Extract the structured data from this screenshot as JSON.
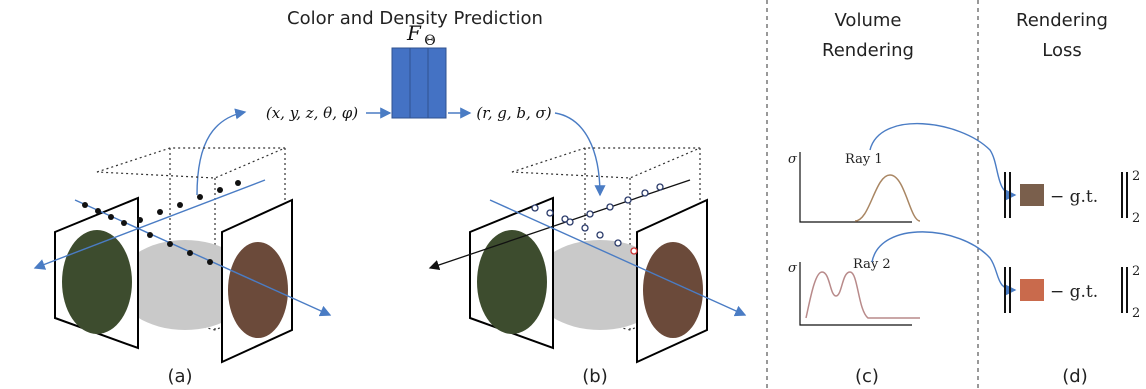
{
  "title": "Color and Density Prediction",
  "network": {
    "label_main": "F",
    "label_sub": "Θ",
    "input": "(x, y, z, θ, φ)",
    "output": "(r, g, b, σ)"
  },
  "volume_rendering": {
    "title": [
      "Volume",
      "Rendering"
    ],
    "plots": [
      {
        "axis_label": "σ",
        "ray": "Ray 1"
      },
      {
        "axis_label": "σ",
        "ray": "Ray 2"
      }
    ]
  },
  "rendering_loss": {
    "title": [
      "Rendering",
      "Loss"
    ],
    "terms": [
      {
        "text": "− g.t.",
        "sup": "2",
        "sub": "2"
      },
      {
        "text": "− g.t.",
        "sup": "2",
        "sub": "2"
      }
    ]
  },
  "captions": [
    "(a)",
    "(b)",
    "(c)",
    "(d)"
  ]
}
